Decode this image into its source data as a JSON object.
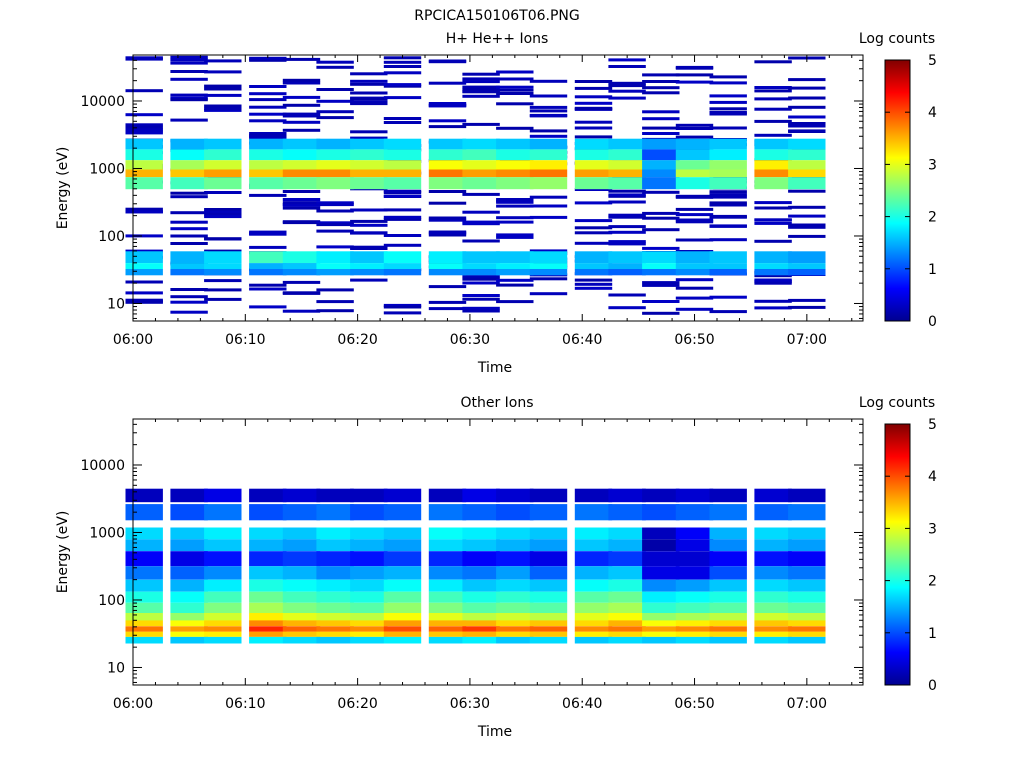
{
  "figure_title": "RPCICA150106T06.PNG",
  "chart_data": [
    {
      "type": "heatmap",
      "title": "H+ He++ Ions",
      "xlabel": "Time",
      "ylabel": "Energy (eV)",
      "y_scale": "log",
      "ylim": [
        5.5,
        48000
      ],
      "x_ticks": [
        "06:00",
        "06:10",
        "06:20",
        "06:30",
        "06:40",
        "06:50",
        "07:00"
      ],
      "y_ticks": [
        "10",
        "100",
        "1000",
        "10000"
      ],
      "colorbar": {
        "label": "Log counts",
        "range": [
          0,
          5
        ],
        "ticks": [
          "0",
          "1",
          "2",
          "3",
          "4",
          "5"
        ]
      },
      "columns": [
        "06:01",
        "06:05",
        "06:08",
        "06:12",
        "06:15",
        "06:18",
        "06:21",
        "06:24",
        "06:28",
        "06:31",
        "06:34",
        "06:37",
        "06:41",
        "06:44",
        "06:47",
        "06:50",
        "06:53",
        "06:57",
        "07:00"
      ],
      "bands": [
        {
          "energy": 2300,
          "values": [
            1.6,
            1.5,
            1.6,
            1.5,
            1.6,
            1.5,
            1.6,
            1.7,
            1.6,
            1.7,
            1.6,
            1.5,
            1.7,
            1.6,
            1.4,
            1.5,
            1.6,
            1.6,
            1.7
          ]
        },
        {
          "energy": 1600,
          "values": [
            2.0,
            1.9,
            2.1,
            2.0,
            1.9,
            2.0,
            2.1,
            2.0,
            2.1,
            2.2,
            2.0,
            2.1,
            2.0,
            2.1,
            1.0,
            1.6,
            1.8,
            2.0,
            2.1
          ]
        },
        {
          "energy": 1100,
          "values": [
            2.8,
            2.7,
            2.9,
            2.8,
            2.9,
            3.0,
            2.9,
            2.8,
            3.1,
            3.0,
            3.1,
            3.2,
            3.0,
            2.9,
            1.5,
            2.4,
            2.6,
            3.2,
            2.8
          ]
        },
        {
          "energy": 850,
          "values": [
            3.5,
            3.4,
            3.6,
            3.4,
            3.7,
            3.7,
            3.5,
            3.5,
            3.8,
            3.6,
            3.7,
            3.8,
            3.6,
            3.5,
            1.3,
            2.8,
            2.7,
            3.7,
            3.3
          ]
        },
        {
          "energy": 650,
          "values": [
            2.3,
            2.2,
            2.4,
            2.3,
            2.4,
            2.5,
            2.4,
            2.3,
            2.5,
            2.4,
            2.5,
            2.6,
            2.4,
            2.3,
            1.2,
            2.0,
            2.2,
            2.5,
            2.2
          ]
        },
        {
          "energy": 45,
          "values": [
            1.6,
            1.5,
            1.7,
            2.2,
            2.0,
            1.8,
            1.6,
            1.9,
            1.8,
            1.6,
            1.6,
            1.7,
            1.5,
            1.6,
            1.7,
            1.5,
            1.6,
            1.5,
            1.4
          ]
        },
        {
          "energy": 35,
          "values": [
            1.9,
            1.6,
            1.7,
            1.5,
            1.6,
            1.9,
            1.8,
            1.7,
            1.9,
            1.7,
            1.8,
            1.9,
            1.6,
            1.5,
            1.9,
            1.6,
            1.6,
            1.7,
            1.6
          ]
        },
        {
          "energy": 30,
          "values": [
            1.4,
            1.2,
            1.3,
            1.2,
            1.3,
            1.4,
            1.3,
            1.2,
            1.3,
            1.3,
            1.4,
            1.3,
            1.2,
            1.1,
            1.2,
            1.3,
            1.1,
            1.2,
            1.1
          ]
        }
      ],
      "sparse_energy_range": [
        7,
        45000
      ],
      "sparse_value": 0.2
    },
    {
      "type": "heatmap",
      "title": "Other Ions",
      "xlabel": "Time",
      "ylabel": "Energy (eV)",
      "y_scale": "log",
      "ylim": [
        5.5,
        48000
      ],
      "x_ticks": [
        "06:00",
        "06:10",
        "06:20",
        "06:30",
        "06:40",
        "06:50",
        "07:00"
      ],
      "y_ticks": [
        "10",
        "100",
        "1000",
        "10000"
      ],
      "colorbar": {
        "label": "Log counts",
        "range": [
          0,
          5
        ],
        "ticks": [
          "0",
          "1",
          "2",
          "3",
          "4",
          "5"
        ]
      },
      "columns": [
        "06:01",
        "06:05",
        "06:08",
        "06:12",
        "06:15",
        "06:18",
        "06:21",
        "06:24",
        "06:28",
        "06:31",
        "06:34",
        "06:37",
        "06:41",
        "06:44",
        "06:47",
        "06:50",
        "06:53",
        "06:57",
        "07:00"
      ],
      "bands": [
        {
          "energy": 3700,
          "values": [
            0.3,
            0.3,
            0.5,
            0.3,
            0.4,
            0.3,
            0.3,
            0.4,
            0.3,
            0.5,
            0.4,
            0.3,
            0.3,
            0.4,
            0.3,
            0.4,
            0.3,
            0.4,
            0.3
          ]
        },
        {
          "energy": 2000,
          "values": [
            1.1,
            1.0,
            1.2,
            1.0,
            1.1,
            1.2,
            1.0,
            1.1,
            1.2,
            1.1,
            1.0,
            1.1,
            1.2,
            1.1,
            1.0,
            1.1,
            1.2,
            1.1,
            1.2
          ]
        },
        {
          "energy": 900,
          "values": [
            1.7,
            1.6,
            1.8,
            1.7,
            1.6,
            1.8,
            1.7,
            1.6,
            1.9,
            1.8,
            1.7,
            1.6,
            1.8,
            1.7,
            0.3,
            0.6,
            1.5,
            1.7,
            1.6
          ]
        },
        {
          "energy": 700,
          "values": [
            1.5,
            1.4,
            1.6,
            1.5,
            1.4,
            1.6,
            1.5,
            1.4,
            1.7,
            1.6,
            1.5,
            1.4,
            1.6,
            1.5,
            0.2,
            0.5,
            1.3,
            1.5,
            1.4
          ]
        },
        {
          "energy": 400,
          "values": [
            0.6,
            0.5,
            0.7,
            0.8,
            0.9,
            0.8,
            0.7,
            0.9,
            0.8,
            0.6,
            0.7,
            0.5,
            0.8,
            0.9,
            0.4,
            0.4,
            0.6,
            0.7,
            0.6
          ]
        },
        {
          "energy": 250,
          "values": [
            1.2,
            1.1,
            1.3,
            1.6,
            1.5,
            1.3,
            1.4,
            1.5,
            1.3,
            1.2,
            1.4,
            1.1,
            1.5,
            1.6,
            0.5,
            0.5,
            1.0,
            1.3,
            1.2
          ]
        },
        {
          "energy": 160,
          "values": [
            1.6,
            1.5,
            1.8,
            2.0,
            1.9,
            1.8,
            1.7,
            1.9,
            1.8,
            1.6,
            1.7,
            1.6,
            1.9,
            2.0,
            1.3,
            1.4,
            1.6,
            1.7,
            1.6
          ]
        },
        {
          "energy": 110,
          "values": [
            2.0,
            1.9,
            2.2,
            2.4,
            2.2,
            2.1,
            2.0,
            2.3,
            2.2,
            2.0,
            2.1,
            2.0,
            2.3,
            2.4,
            1.8,
            1.9,
            2.0,
            2.1,
            2.0
          ]
        },
        {
          "energy": 75,
          "values": [
            2.3,
            2.1,
            2.5,
            2.7,
            2.5,
            2.4,
            2.3,
            2.6,
            2.5,
            2.3,
            2.4,
            2.3,
            2.6,
            2.7,
            2.1,
            2.2,
            2.3,
            2.4,
            2.3
          ]
        },
        {
          "energy": 55,
          "values": [
            2.8,
            2.6,
            2.9,
            3.2,
            3.0,
            2.9,
            2.8,
            3.1,
            3.0,
            2.8,
            2.9,
            2.8,
            3.0,
            3.1,
            2.6,
            2.7,
            2.8,
            2.9,
            2.8
          ]
        },
        {
          "energy": 45,
          "values": [
            3.3,
            3.1,
            3.3,
            3.7,
            3.5,
            3.4,
            3.3,
            3.6,
            3.5,
            3.5,
            3.3,
            3.4,
            3.3,
            3.5,
            3.1,
            3.2,
            3.3,
            3.4,
            3.3
          ]
        },
        {
          "energy": 37,
          "values": [
            3.8,
            3.6,
            3.7,
            4.2,
            3.9,
            3.8,
            3.7,
            4.0,
            3.9,
            4.1,
            3.8,
            3.9,
            3.7,
            3.8,
            3.6,
            3.7,
            3.8,
            3.7,
            3.8
          ]
        },
        {
          "energy": 31,
          "values": [
            3.3,
            3.1,
            3.2,
            3.6,
            3.4,
            3.3,
            3.2,
            3.5,
            3.4,
            3.5,
            3.3,
            3.4,
            3.2,
            3.3,
            3.1,
            3.2,
            3.3,
            3.2,
            3.3
          ]
        },
        {
          "energy": 26,
          "values": [
            1.7,
            1.6,
            1.7,
            1.8,
            1.7,
            1.6,
            1.7,
            1.8,
            1.7,
            1.8,
            1.6,
            1.7,
            1.6,
            1.7,
            1.6,
            1.7,
            1.6,
            1.7,
            1.6
          ]
        }
      ]
    }
  ]
}
